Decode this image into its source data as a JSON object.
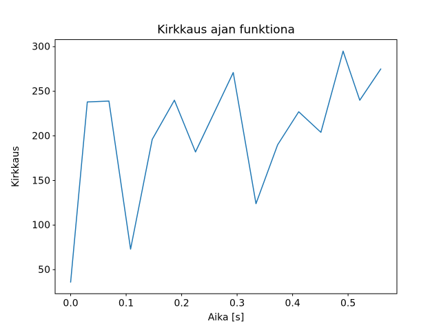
{
  "chart_data": {
    "type": "line",
    "title": "Kirkkaus ajan funktiona",
    "xlabel": "Aika [s]",
    "ylabel": "Kirkkaus",
    "x": [
      0.0,
      0.03,
      0.069,
      0.108,
      0.147,
      0.187,
      0.225,
      0.293,
      0.334,
      0.373,
      0.411,
      0.451,
      0.491,
      0.521,
      0.559
    ],
    "y": [
      36,
      238,
      239,
      73,
      196,
      240,
      182,
      271,
      124,
      190,
      227,
      204,
      295,
      240,
      275
    ],
    "xlim": [
      -0.028,
      0.588
    ],
    "ylim": [
      23.05,
      307.95
    ],
    "xticks": [
      0.0,
      0.1,
      0.2,
      0.3,
      0.4,
      0.5
    ],
    "xtick_labels": [
      "0.0",
      "0.1",
      "0.2",
      "0.3",
      "0.4",
      "0.5"
    ],
    "yticks": [
      50,
      100,
      150,
      200,
      250,
      300
    ],
    "ytick_labels": [
      "50",
      "100",
      "150",
      "200",
      "250",
      "300"
    ],
    "line_color": "#1f77b4",
    "axes_edge_color": "#000000",
    "background_color": "#ffffff",
    "grid": false,
    "legend_position": "none"
  }
}
